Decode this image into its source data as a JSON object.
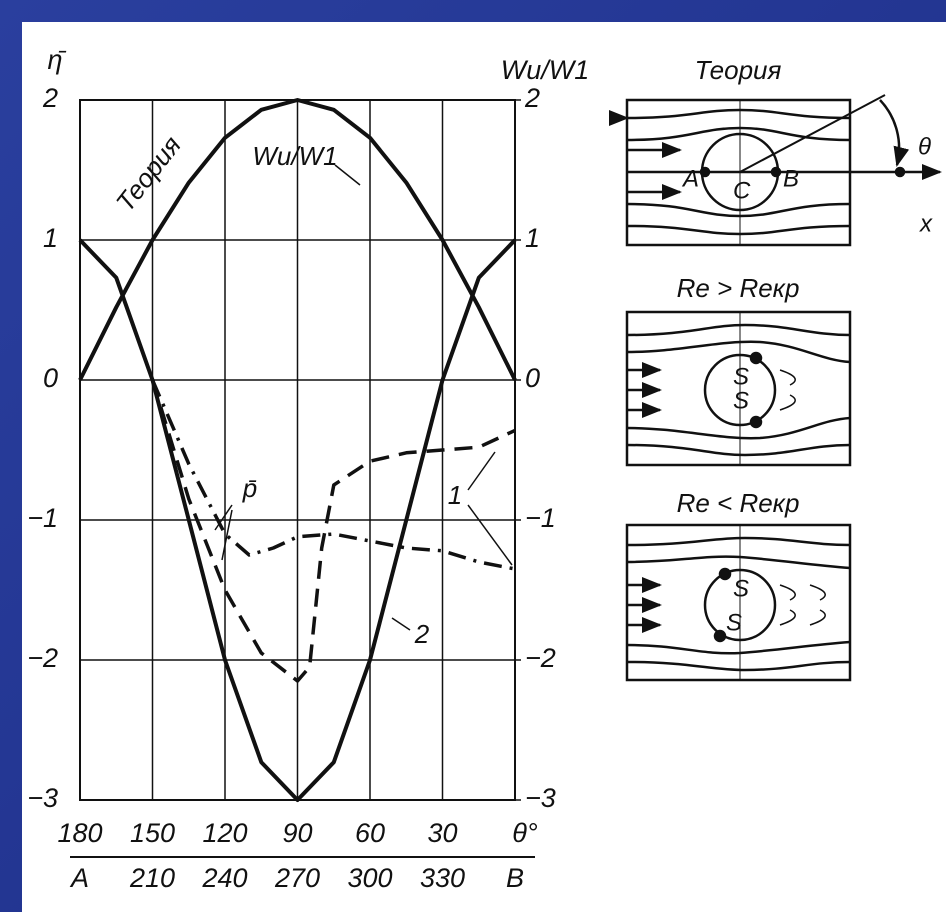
{
  "chart_data": {
    "type": "line",
    "ylabel": "η̄",
    "y2label": "Wu/W1",
    "xlabel": "θ°",
    "xlim": [
      180,
      0
    ],
    "xticks": [
      180,
      150,
      120,
      90,
      60,
      30
    ],
    "x2lim": [
      180,
      360
    ],
    "x2ticks": [
      {
        "value": 180,
        "label": "A"
      },
      210,
      240,
      270,
      300,
      330,
      {
        "value": 360,
        "label": "B"
      }
    ],
    "ylim": [
      -3,
      2
    ],
    "yticks": [
      {
        "value": -3,
        "label": "−3"
      },
      {
        "value": -2,
        "label": "−2"
      },
      {
        "value": -1,
        "label": "−1"
      },
      0,
      1,
      2
    ],
    "y2lim": [
      -3,
      2
    ],
    "y2ticks": [
      {
        "value": -3,
        "label": "−3"
      },
      {
        "value": -2,
        "label": "−2"
      },
      {
        "value": -1,
        "label": "−1"
      },
      0,
      1,
      2
    ],
    "grid": true,
    "series": [
      {
        "color": "#111111",
        "style": "solid",
        "axis": "y2",
        "x": [
          180,
          165,
          150,
          135,
          120,
          105,
          90,
          75,
          60,
          45,
          30,
          15,
          0
        ],
        "values": [
          0,
          0.52,
          1,
          1.41,
          1.73,
          1.93,
          2,
          1.93,
          1.73,
          1.41,
          1,
          0.52,
          0
        ]
      },
      {
        "color": "#111111",
        "style": "solid",
        "x": [
          180,
          165,
          150,
          135,
          120,
          105,
          90,
          75,
          60,
          45,
          30,
          15,
          0
        ],
        "values": [
          1,
          0.73,
          0,
          -1,
          -2,
          -2.73,
          -3,
          -2.73,
          -2,
          -1,
          0,
          0.73,
          1
        ]
      },
      {
        "color": "#111111",
        "style": "dashed",
        "x": [
          150,
          135,
          120,
          105,
          90,
          85,
          80,
          75,
          60,
          45,
          30,
          15,
          0
        ],
        "values": [
          0,
          -0.85,
          -1.5,
          -1.95,
          -2.15,
          -2.05,
          -1.2,
          -0.75,
          -0.58,
          -0.52,
          -0.5,
          -0.48,
          -0.36
        ]
      },
      {
        "color": "#111111",
        "style": "dashdot",
        "x": [
          150,
          135,
          120,
          110,
          100,
          90,
          75,
          60,
          45,
          30,
          15,
          0
        ],
        "values": [
          0,
          -0.6,
          -1.1,
          -1.25,
          -1.2,
          -1.12,
          -1.1,
          -1.15,
          -1.2,
          -1.22,
          -1.3,
          -1.35
        ]
      }
    ],
    "annotations": [
      "Теория",
      "Wu/W1",
      "p̄",
      "1",
      "2"
    ]
  },
  "diagrams": [
    {
      "title": "Теория",
      "labels": [
        "A",
        "B",
        "C",
        "θ",
        "x"
      ]
    },
    {
      "title": "Re > Reкр",
      "labels": [
        "S",
        "S"
      ]
    },
    {
      "title": "Re < Reкр",
      "labels": [
        "S",
        "S"
      ]
    }
  ]
}
